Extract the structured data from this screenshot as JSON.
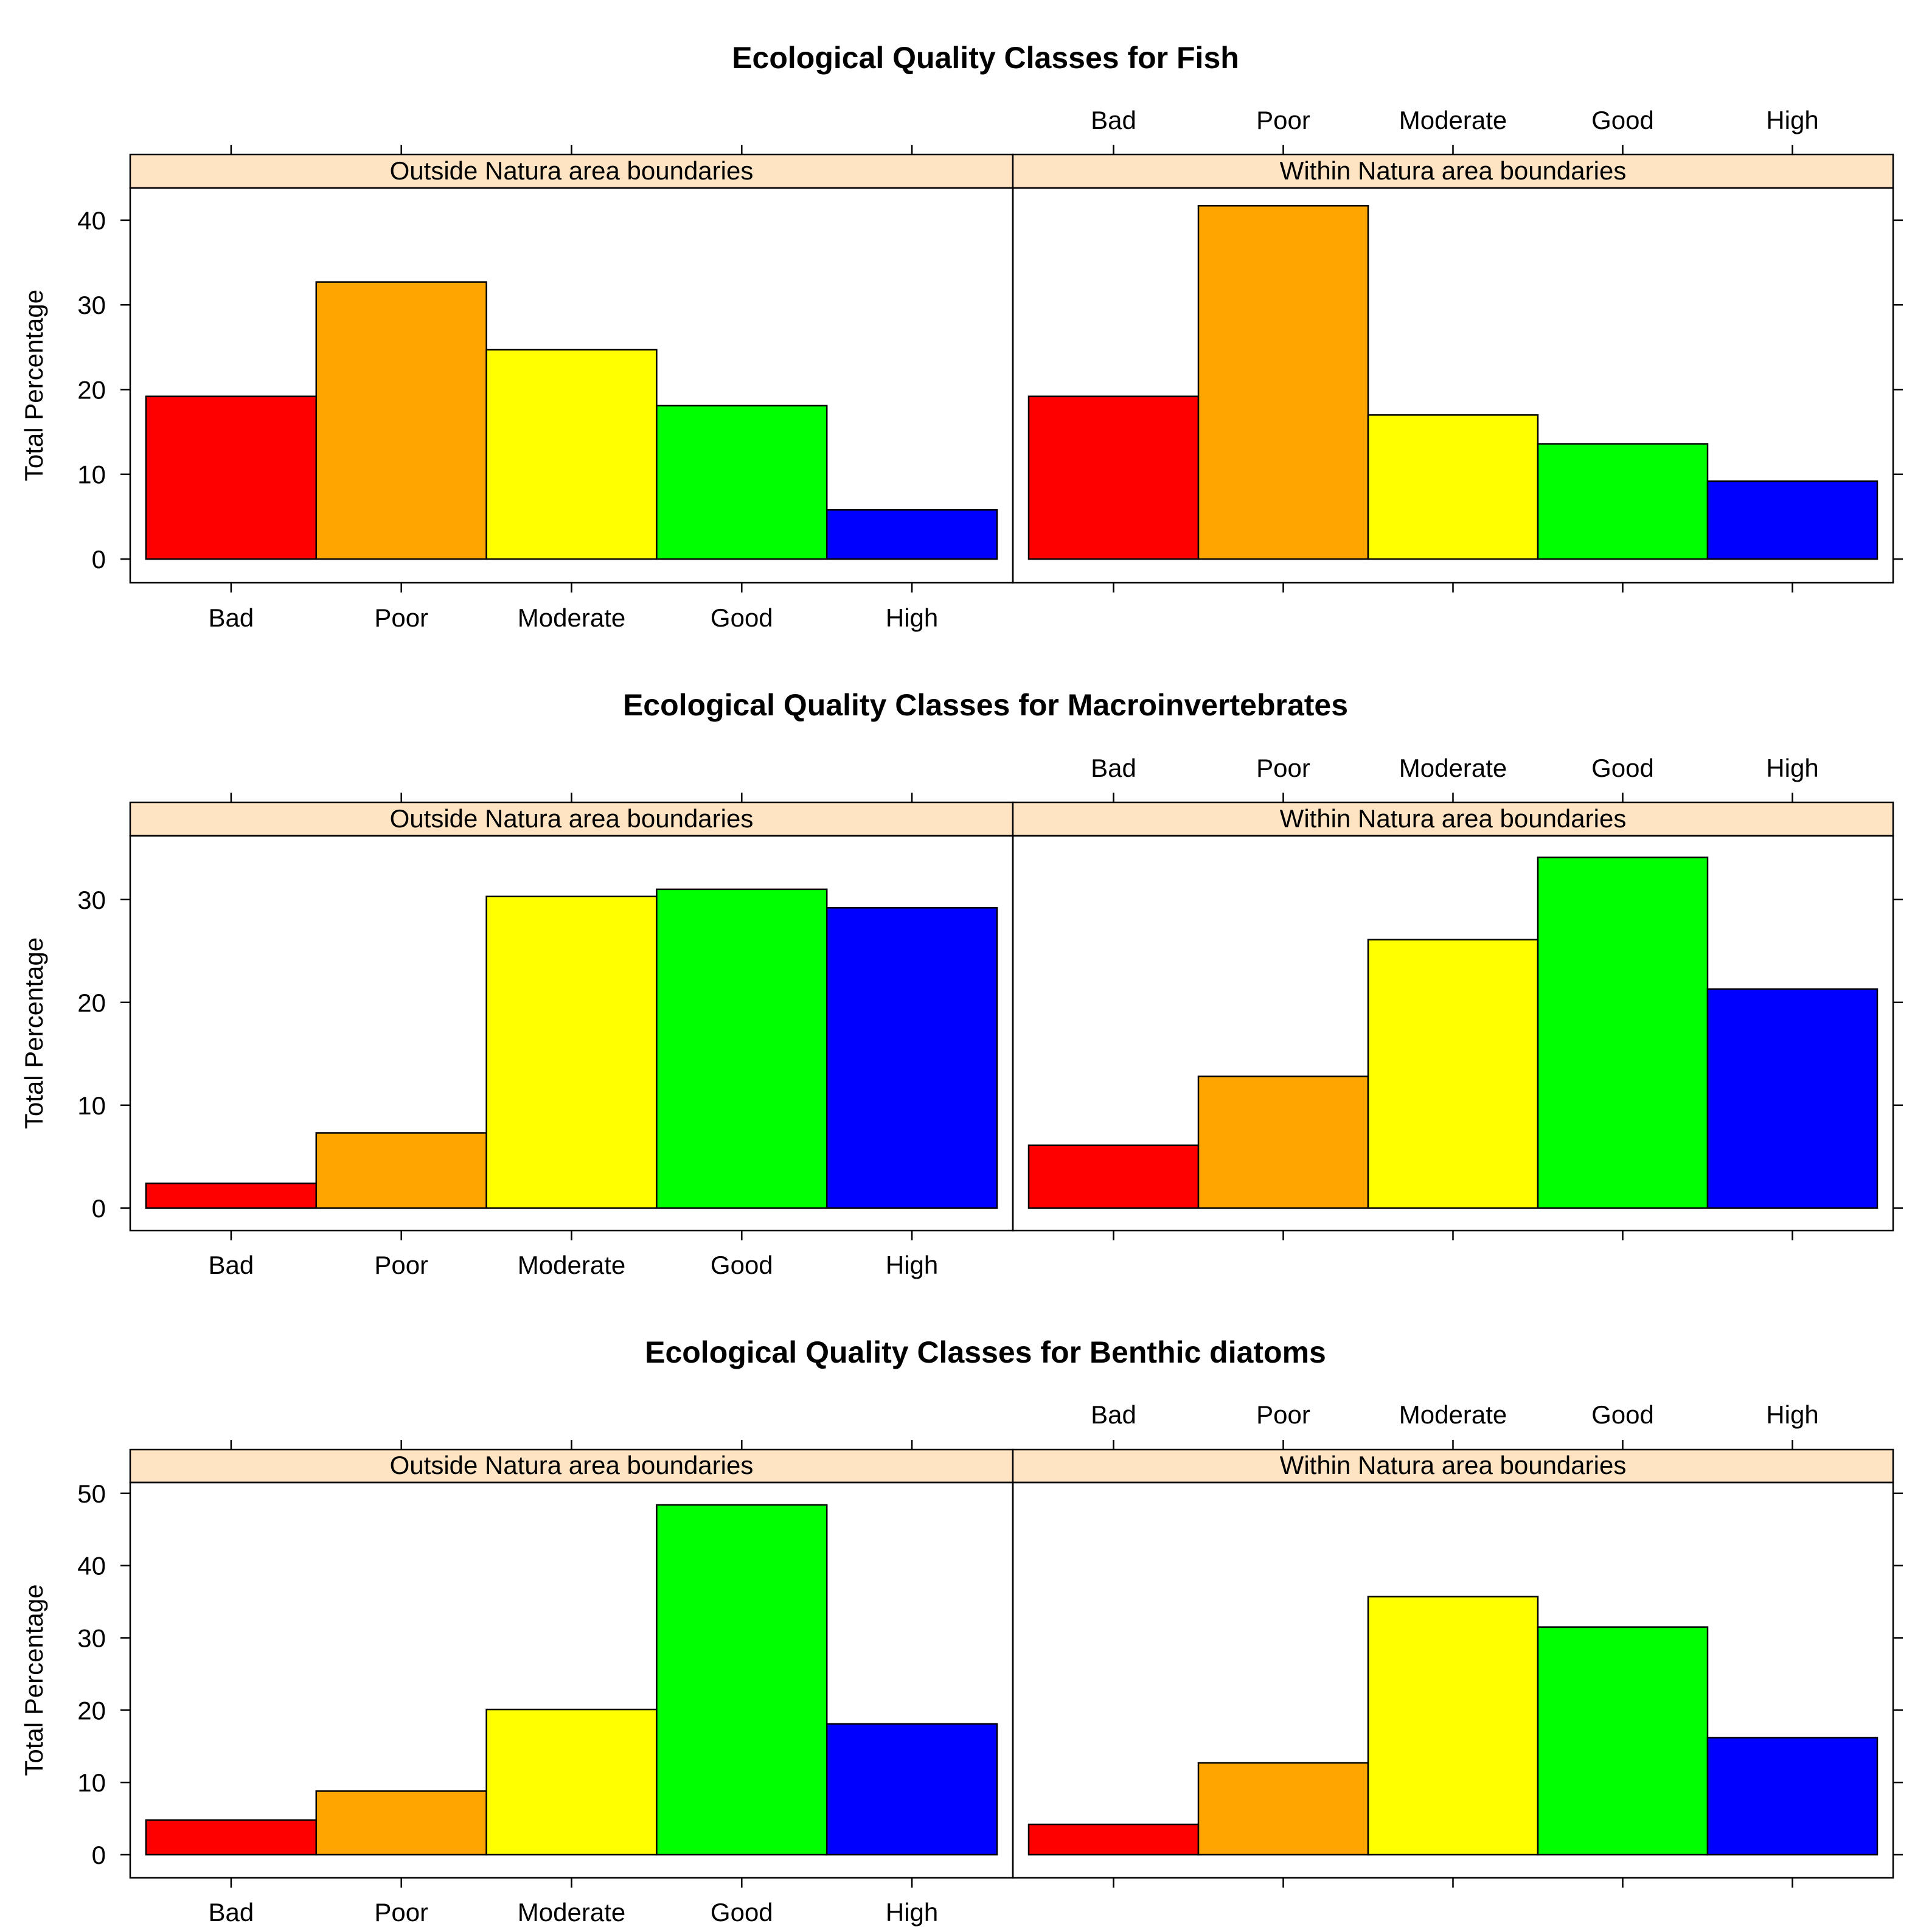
{
  "figure": {
    "strip_color": "#ffe4c4",
    "bar_stroke": "#000000"
  },
  "chart_data": [
    {
      "type": "bar",
      "title": "Ecological Quality Classes for Fish",
      "ylabel": "Total Percentage",
      "xlabel": "",
      "categories": [
        "Bad",
        "Poor",
        "Moderate",
        "Good",
        "High"
      ],
      "colors": [
        "#ff0000",
        "#ffa500",
        "#ffff00",
        "#00ff00",
        "#0000ff"
      ],
      "ylim": [
        -2.8,
        43.8
      ],
      "yticks": [
        0,
        10,
        20,
        30,
        40
      ],
      "grid": false,
      "panels": [
        {
          "label": "Outside Natura area boundaries",
          "values": [
            19.2,
            32.7,
            24.7,
            18.1,
            5.8
          ]
        },
        {
          "label": "Within Natura area boundaries",
          "values": [
            19.2,
            41.7,
            17.0,
            13.6,
            9.2
          ]
        }
      ]
    },
    {
      "type": "bar",
      "title": "Ecological Quality Classes for Macroinvertebrates",
      "ylabel": "Total Percentage",
      "xlabel": "",
      "categories": [
        "Bad",
        "Poor",
        "Moderate",
        "Good",
        "High"
      ],
      "colors": [
        "#ff0000",
        "#ffa500",
        "#ffff00",
        "#00ff00",
        "#0000ff"
      ],
      "ylim": [
        -2.2,
        36.2
      ],
      "yticks": [
        0,
        10,
        20,
        30
      ],
      "grid": false,
      "panels": [
        {
          "label": "Outside Natura area boundaries",
          "values": [
            2.4,
            7.3,
            30.3,
            31.0,
            29.2
          ]
        },
        {
          "label": "Within Natura area boundaries",
          "values": [
            6.1,
            12.8,
            26.1,
            34.1,
            21.3
          ]
        }
      ]
    },
    {
      "type": "bar",
      "title": "Ecological Quality Classes for Benthic diatoms",
      "ylabel": "Total Percentage",
      "xlabel": "",
      "categories": [
        "Bad",
        "Poor",
        "Moderate",
        "Good",
        "High"
      ],
      "colors": [
        "#ff0000",
        "#ffa500",
        "#ffff00",
        "#00ff00",
        "#0000ff"
      ],
      "ylim": [
        -3.2,
        51.5
      ],
      "yticks": [
        0,
        10,
        20,
        30,
        40,
        50
      ],
      "grid": false,
      "panels": [
        {
          "label": "Outside Natura area boundaries",
          "values": [
            4.8,
            8.8,
            20.1,
            48.4,
            18.1
          ]
        },
        {
          "label": "Within Natura area boundaries",
          "values": [
            4.2,
            12.7,
            35.7,
            31.5,
            16.2
          ]
        }
      ]
    }
  ]
}
